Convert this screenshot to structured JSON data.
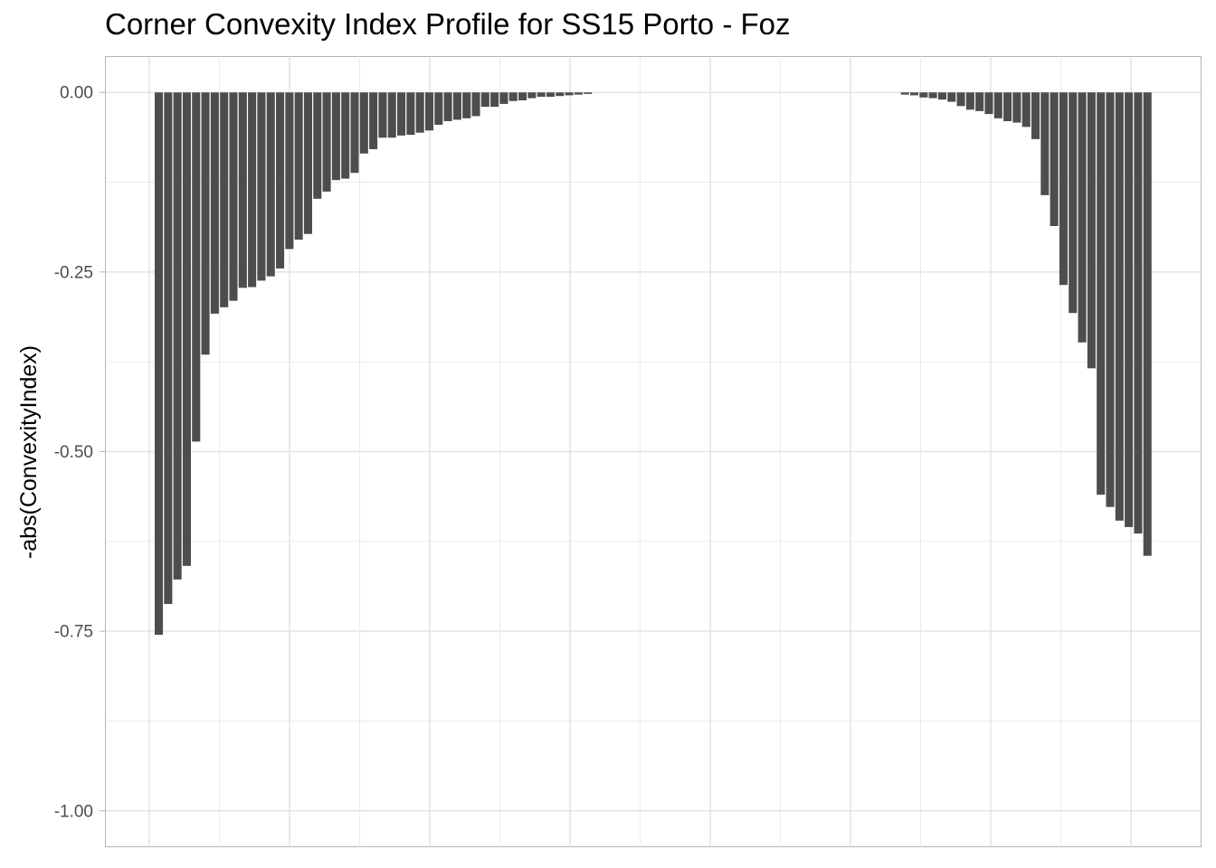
{
  "chart_data": {
    "type": "bar",
    "title": "Corner Convexity Index Profile for SS15 Porto - Foz",
    "xlabel": "",
    "ylabel": "-abs(ConvexityIndex)",
    "ylim": [
      -1.05,
      0.05
    ],
    "y_ticks": [
      0.0,
      -0.25,
      -0.5,
      -0.75,
      -1.0
    ],
    "y_tick_labels": [
      "0.00",
      "-0.25",
      "-0.50",
      "-0.75",
      "-1.00"
    ],
    "grid": true,
    "bar_color": "#4d4d4d",
    "series": [
      {
        "values": [
          -0.755,
          -0.712,
          -0.678,
          -0.659,
          -0.486,
          -0.365,
          -0.308,
          -0.299,
          -0.29,
          -0.272,
          -0.271,
          -0.262,
          -0.256,
          -0.245,
          -0.218,
          -0.205,
          -0.197,
          -0.148,
          -0.138,
          -0.122,
          -0.12,
          -0.112,
          -0.085,
          -0.079,
          -0.063,
          -0.063,
          -0.06,
          -0.059,
          -0.056,
          -0.053,
          -0.045,
          -0.04,
          -0.038,
          -0.036,
          -0.033,
          -0.02,
          -0.02,
          -0.016,
          -0.012,
          -0.011,
          -0.008,
          -0.006,
          -0.006,
          -0.005,
          -0.004,
          -0.003,
          -0.002,
          0,
          0,
          0,
          0,
          0,
          0,
          0,
          0,
          0,
          0,
          0,
          0,
          0,
          0,
          0,
          0,
          0,
          0,
          0,
          0,
          0,
          0,
          0,
          0,
          0,
          0,
          0,
          0,
          0,
          0,
          0,
          0,
          0,
          -0.003,
          -0.004,
          -0.007,
          -0.008,
          -0.01,
          -0.013,
          -0.019,
          -0.024,
          -0.026,
          -0.03,
          -0.036,
          -0.04,
          -0.042,
          -0.048,
          -0.065,
          -0.143,
          -0.186,
          -0.268,
          -0.307,
          -0.348,
          -0.384,
          -0.56,
          -0.577,
          -0.596,
          -0.605,
          -0.614,
          -0.645
        ]
      }
    ]
  }
}
